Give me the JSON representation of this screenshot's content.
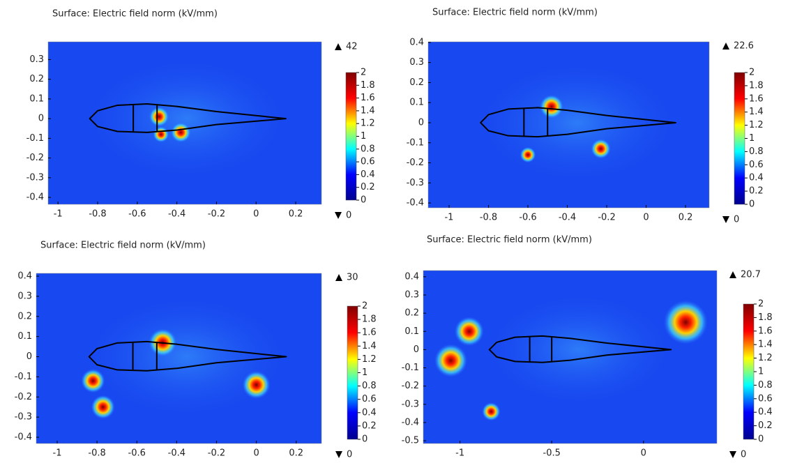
{
  "chart_data": [
    {
      "type": "surface",
      "title": "Surface: Electric field norm (kV/mm)",
      "colormap": "jet",
      "xlim": [
        -1.05,
        0.33
      ],
      "ylim": [
        -0.435,
        0.39
      ],
      "xticks": [
        -1,
        -0.8,
        -0.6,
        -0.4,
        -0.2,
        0,
        0.2
      ],
      "yticks": [
        -0.4,
        -0.3,
        -0.2,
        -0.1,
        0,
        0.1,
        0.2,
        0.3
      ],
      "colorbar": {
        "lim": [
          0,
          2
        ],
        "ticks": [
          0,
          0.2,
          0.4,
          0.6,
          0.8,
          1,
          1.2,
          1.4,
          1.6,
          1.8,
          2
        ],
        "max": 42,
        "min": 0
      }
    },
    {
      "type": "surface",
      "title": "Surface: Electric field norm (kV/mm)",
      "colormap": "jet",
      "xlim": [
        -1.106,
        0.32
      ],
      "ylim": [
        -0.424,
        0.403
      ],
      "xticks": [
        -1,
        -0.8,
        -0.6,
        -0.4,
        -0.2,
        0,
        0.2
      ],
      "yticks": [
        -0.4,
        -0.3,
        -0.2,
        -0.1,
        0,
        0.1,
        0.2,
        0.3,
        0.4
      ],
      "colorbar": {
        "lim": [
          0,
          2
        ],
        "ticks": [
          0,
          0.2,
          0.4,
          0.6,
          0.8,
          1,
          1.2,
          1.4,
          1.6,
          1.8,
          2
        ],
        "max": 22.6,
        "min": 0
      }
    },
    {
      "type": "surface",
      "title": "Surface: Electric field norm (kV/mm)",
      "colormap": "jet",
      "xlim": [
        -1.105,
        0.327
      ],
      "ylim": [
        -0.431,
        0.414
      ],
      "xticks": [
        -1,
        -0.8,
        -0.6,
        -0.4,
        -0.2,
        0,
        0.2
      ],
      "yticks": [
        -0.4,
        -0.3,
        -0.2,
        -0.1,
        0,
        0.1,
        0.2,
        0.3,
        0.4
      ],
      "colorbar": {
        "lim": [
          0,
          2
        ],
        "ticks": [
          0,
          0.2,
          0.4,
          0.6,
          0.8,
          1,
          1.2,
          1.4,
          1.6,
          1.8,
          2
        ],
        "max": 30,
        "min": 0
      }
    },
    {
      "type": "surface",
      "title": "Surface: Electric field norm (kV/mm)",
      "colormap": "jet",
      "xlim": [
        -1.2,
        0.4
      ],
      "ylim": [
        -0.515,
        0.434
      ],
      "xticks": [
        -1,
        -0.5,
        0
      ],
      "yticks": [
        -0.5,
        -0.4,
        -0.3,
        -0.2,
        -0.1,
        0,
        0.1,
        0.2,
        0.3,
        0.4
      ],
      "colorbar": {
        "lim": [
          0,
          2
        ],
        "ticks": [
          0,
          0.2,
          0.4,
          0.6,
          0.8,
          1,
          1.2,
          1.4,
          1.6,
          1.8,
          2
        ],
        "max": 20.7,
        "min": 0
      }
    }
  ]
}
